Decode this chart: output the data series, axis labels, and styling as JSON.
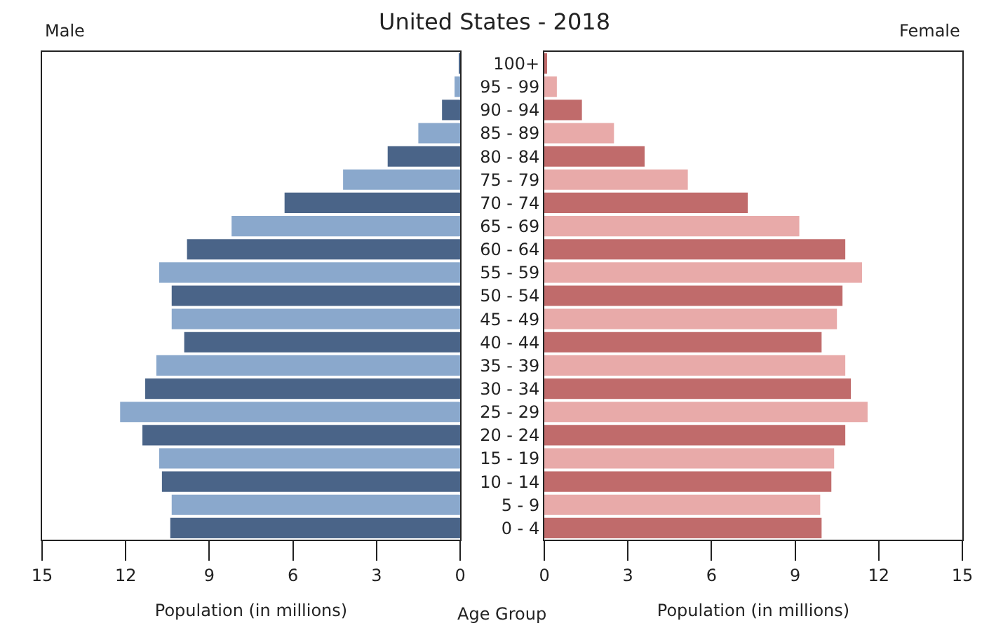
{
  "chart_data": [
    {
      "type": "bar",
      "title": "United States - 2018",
      "subtitle": "Male",
      "xlabel": "Population (in millions)",
      "orientation": "horizontal",
      "tick_labels": "x",
      "grid": false,
      "categories": [
        null,
        null,
        null,
        null,
        null,
        null,
        null,
        null,
        null,
        null,
        null,
        null,
        null,
        null,
        null,
        null,
        null,
        null,
        null,
        null,
        null
      ],
      "values": [
        0.05,
        0.2,
        0.65,
        1.5,
        2.6,
        4.2,
        6.3,
        8.2,
        9.8,
        10.8,
        10.35,
        10.35,
        9.9,
        10.9,
        11.3,
        12.2,
        11.4,
        10.8,
        10.7,
        10.35,
        10.4
      ],
      "colors": [
        "#4a6488",
        "#8aa8cc",
        "#4a6488",
        "#8aa8cc",
        "#4a6488",
        "#8aa8cc",
        "#4a6488",
        "#8aa8cc",
        "#4a6488",
        "#8aa8cc",
        "#4a6488",
        "#8aa8cc",
        "#4a6488",
        "#8aa8cc",
        "#4a6488",
        "#8aa8cc",
        "#4a6488",
        "#8aa8cc",
        "#4a6488",
        "#8aa8cc",
        "#4a6488"
      ],
      "xlim": [
        15,
        0
      ],
      "xticks": [
        15,
        12,
        9,
        6,
        3,
        0
      ]
    },
    {
      "type": "bar",
      "subtitle": "Female",
      "xlabel": "Population (in millions)",
      "ylabel": "Age Group",
      "orientation": "horizontal",
      "grid": false,
      "categories": [
        "100+",
        "95 - 99",
        "90 - 94",
        "85 - 89",
        "80 - 84",
        "75 - 79",
        "70 - 74",
        "65 - 69",
        "60 - 64",
        "55 - 59",
        "50 - 54",
        "45 - 49",
        "40 - 44",
        "35 - 39",
        "30 - 34",
        "25 - 29",
        "20 - 24",
        "15 - 19",
        "10 - 14",
        "5 - 9",
        "0 - 4"
      ],
      "values": [
        0.1,
        0.45,
        1.35,
        2.5,
        3.6,
        5.15,
        7.3,
        9.15,
        10.8,
        11.4,
        10.7,
        10.5,
        9.95,
        10.8,
        11.0,
        11.6,
        10.8,
        10.4,
        10.3,
        9.9,
        9.95
      ],
      "colors": [
        "#c06b6b",
        "#e8aaa9",
        "#c06b6b",
        "#e8aaa9",
        "#c06b6b",
        "#e8aaa9",
        "#c06b6b",
        "#e8aaa9",
        "#c06b6b",
        "#e8aaa9",
        "#c06b6b",
        "#e8aaa9",
        "#c06b6b",
        "#e8aaa9",
        "#c06b6b",
        "#e8aaa9",
        "#c06b6b",
        "#e8aaa9",
        "#c06b6b",
        "#e8aaa9",
        "#c06b6b"
      ],
      "xlim": [
        0,
        15
      ],
      "xticks": [
        0,
        3,
        6,
        9,
        12,
        15
      ]
    }
  ]
}
